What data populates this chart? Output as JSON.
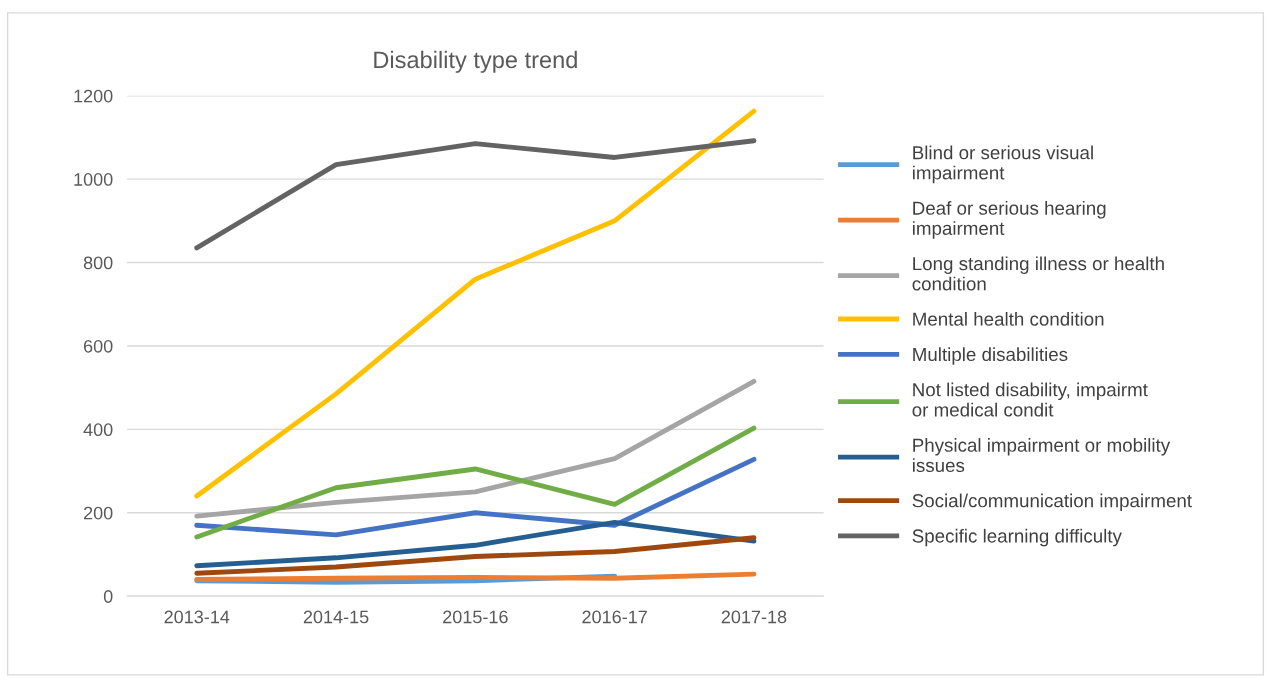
{
  "chart_data": {
    "type": "line",
    "title": "Disability type trend",
    "categories": [
      "2013-14",
      "2014-15",
      "2015-16",
      "2016-17",
      "2017-18"
    ],
    "ylim": [
      0,
      1200
    ],
    "yticks": [
      0,
      200,
      400,
      600,
      800,
      1000,
      1200
    ],
    "grid": "y",
    "legend": "right",
    "marker": "none",
    "line_style": "solid",
    "series": [
      {
        "name": "Blind or serious visual impairment",
        "color": "#5b9bd5",
        "values": [
          37,
          33,
          37,
          48,
          null
        ]
      },
      {
        "name": "Deaf or serious hearing impairment",
        "color": "#ed7d31",
        "values": [
          40,
          43,
          45,
          43,
          53
        ]
      },
      {
        "name": "Long standing illness or health condition",
        "color": "#a5a5a5",
        "values": [
          192,
          225,
          250,
          330,
          515
        ]
      },
      {
        "name": "Mental health condition",
        "color": "#ffc000",
        "values": [
          240,
          485,
          760,
          900,
          1163
        ]
      },
      {
        "name": "Multiple disabilities",
        "color": "#4472c4",
        "values": [
          170,
          147,
          200,
          170,
          328
        ]
      },
      {
        "name": "Not listed disability, impairmt or medical condit",
        "color": "#70ad47",
        "values": [
          142,
          260,
          305,
          220,
          403
        ]
      },
      {
        "name": "Physical impairment or mobility issues",
        "color": "#255e91",
        "values": [
          73,
          92,
          122,
          177,
          132
        ]
      },
      {
        "name": "Social/communication impairment",
        "color": "#9e480e",
        "values": [
          55,
          70,
          95,
          107,
          140
        ]
      },
      {
        "name": "Specific learning difficulty",
        "color": "#636363",
        "values": [
          835,
          1035,
          1085,
          1052,
          1092
        ]
      }
    ]
  }
}
